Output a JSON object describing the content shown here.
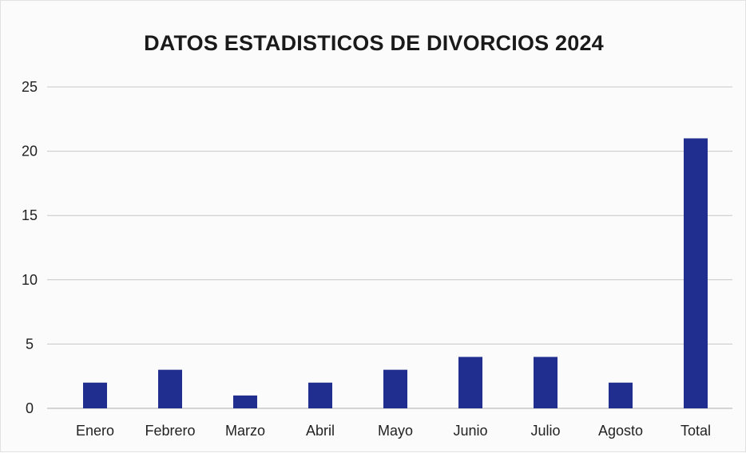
{
  "chart_data": {
    "type": "bar",
    "title": "DATOS ESTADISTICOS DE DIVORCIOS 2024",
    "xlabel": "",
    "ylabel": "",
    "categories": [
      "Enero",
      "Febrero",
      "Marzo",
      "Abril",
      "Mayo",
      "Junio",
      "Julio",
      "Agosto",
      "Total"
    ],
    "values": [
      2,
      3,
      1,
      2,
      3,
      4,
      4,
      2,
      21
    ],
    "ylim": [
      0,
      25
    ],
    "yticks": [
      0,
      5,
      10,
      15,
      20,
      25
    ],
    "grid": true,
    "legend": "none",
    "bar_color": "#1f2e8f",
    "grid_color": "#c8c8c8"
  }
}
